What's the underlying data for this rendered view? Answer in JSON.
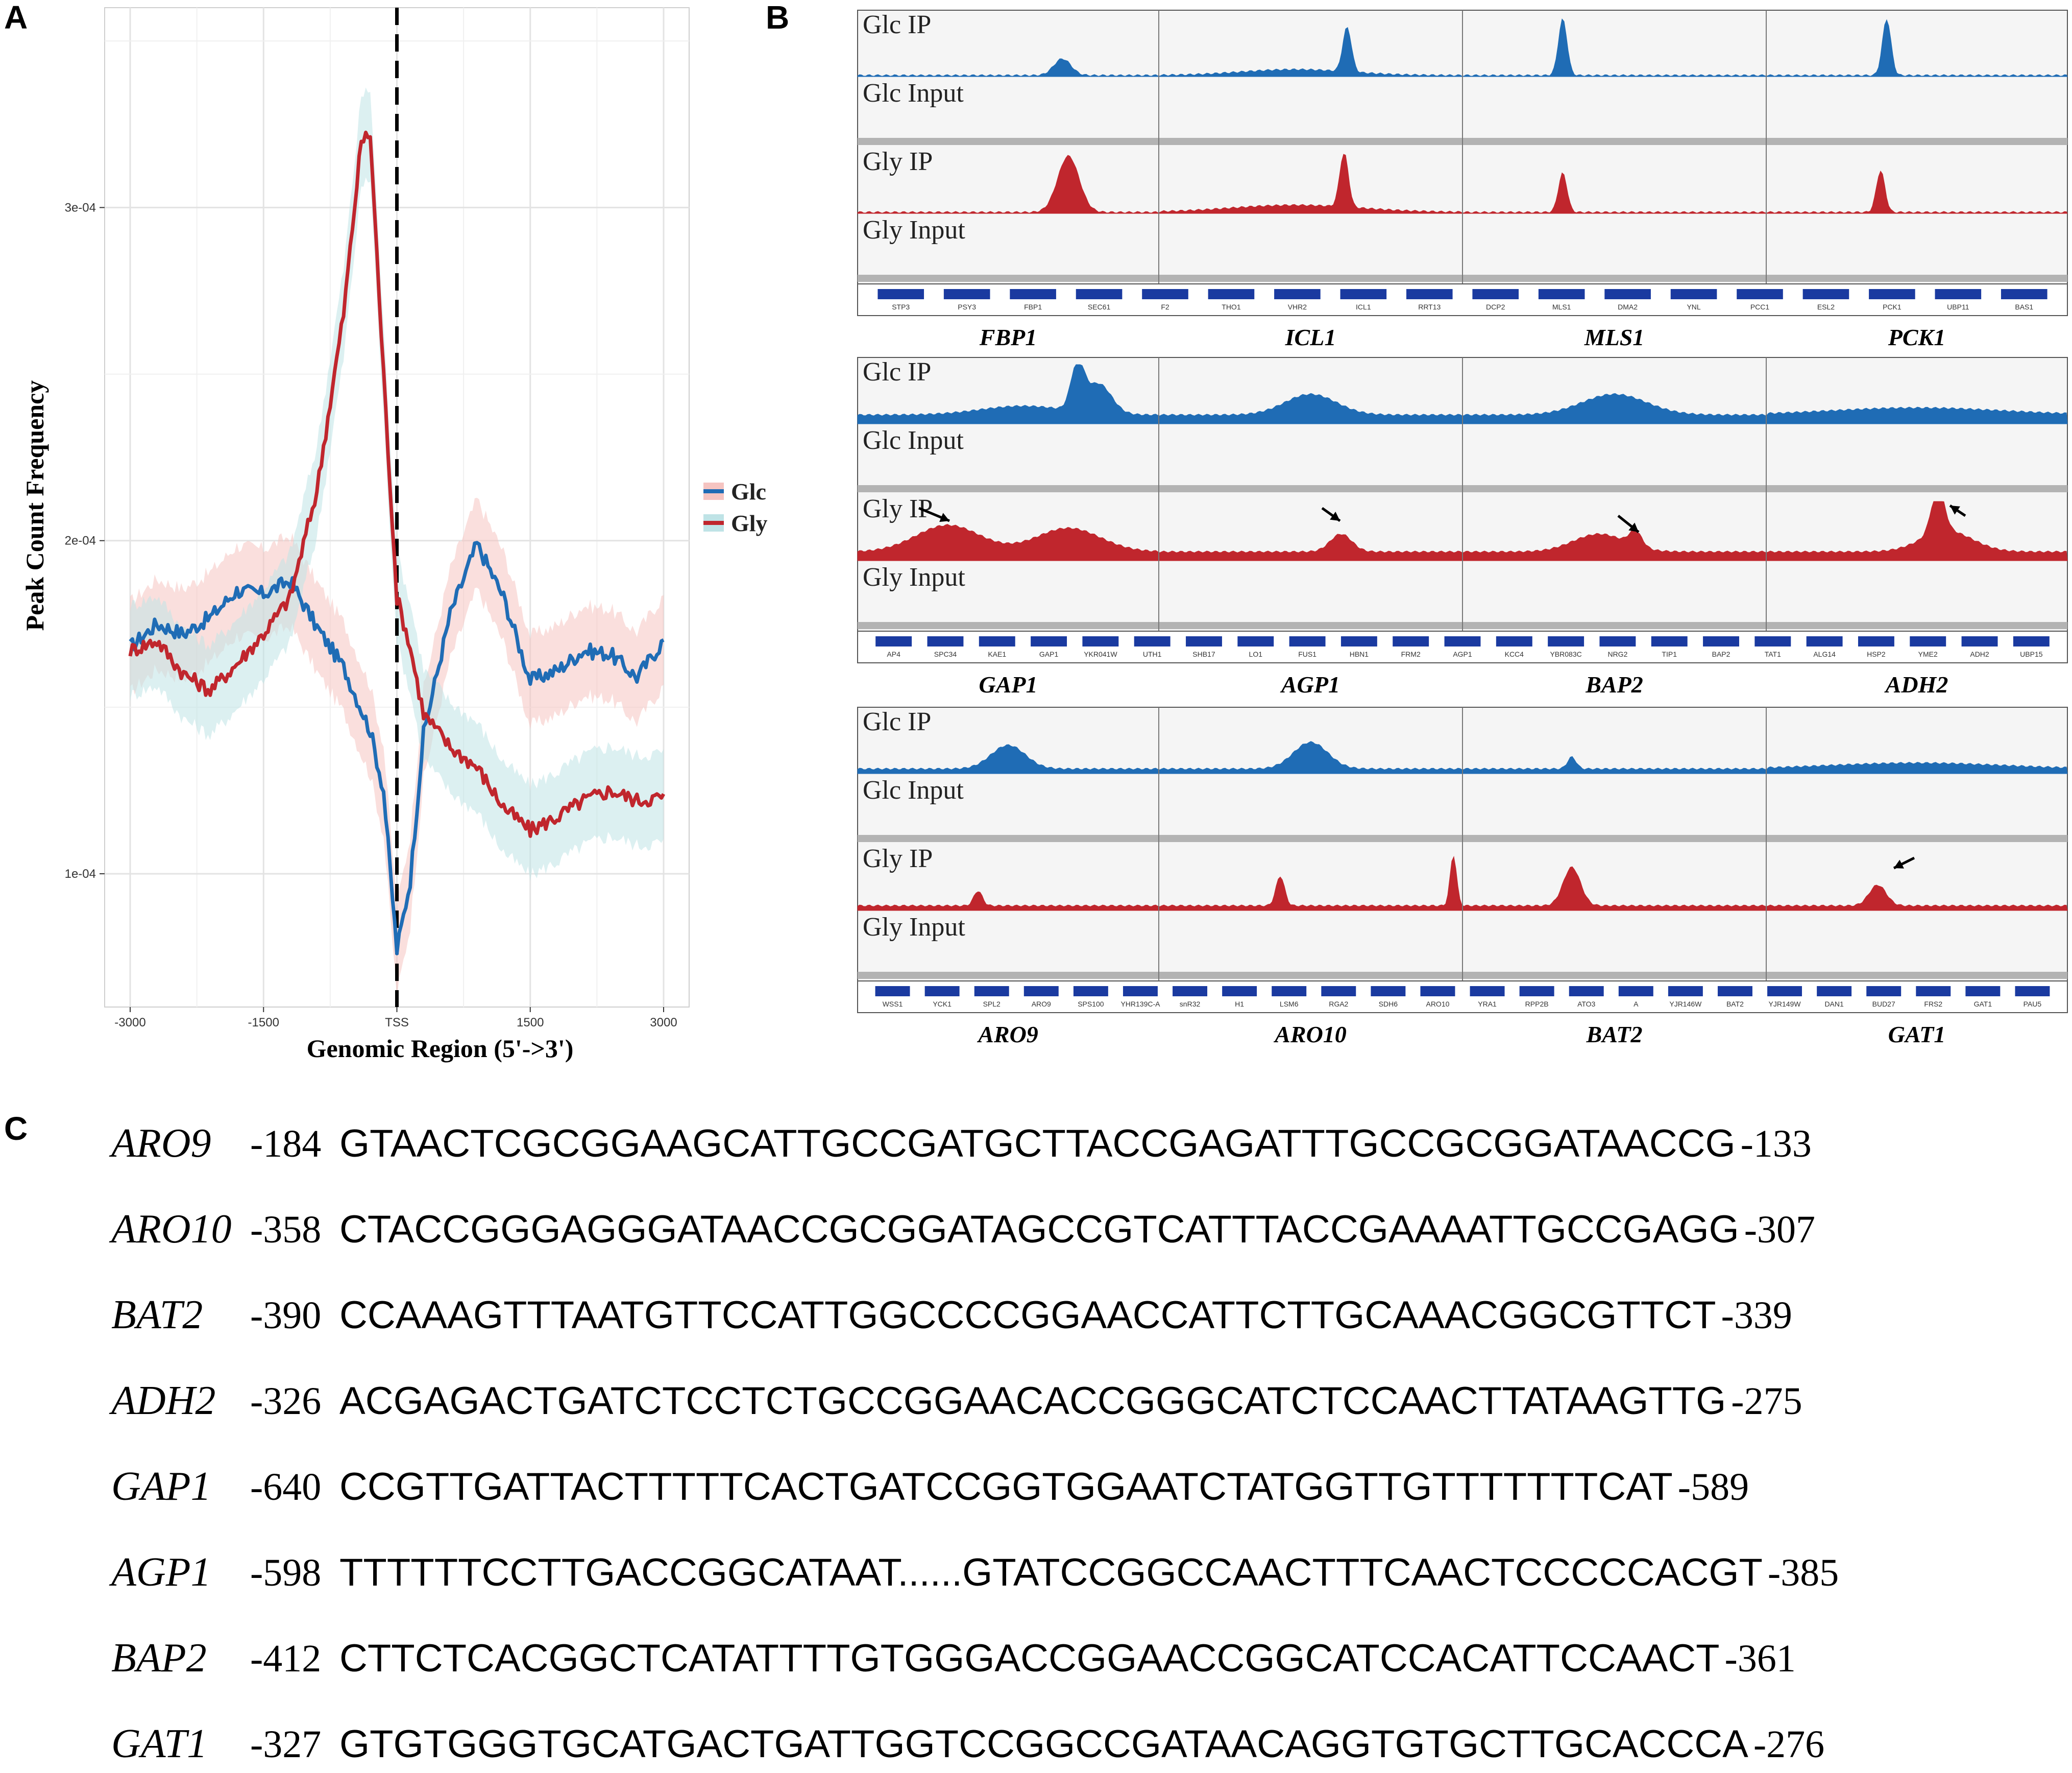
{
  "panels": {
    "a": "A",
    "b": "B",
    "c": "C"
  },
  "chart_data": {
    "type": "line",
    "xlabel": "Genomic Region (5'->3')",
    "ylabel": "Peak Count Frequency",
    "xlim": [
      -3000,
      3000
    ],
    "ylim": [
      6e-05,
      0.00036
    ],
    "x_ticks": [
      -3000,
      -1500,
      0,
      1500,
      3000
    ],
    "x_tick_labels": [
      "-3000",
      "-1500",
      "TSS",
      "1500",
      "3000"
    ],
    "y_ticks": [
      0.0001,
      0.0002,
      0.0003
    ],
    "y_tick_labels": [
      "1e-04",
      "2e-04",
      "3e-04"
    ],
    "grid": true,
    "vline": {
      "x": 0,
      "style": "dashed"
    },
    "legend_position": "right",
    "series": [
      {
        "name": "Glc",
        "color": "#1f6cb5",
        "band": "#f5c4c1",
        "x": [
          -3000,
          -2700,
          -2400,
          -2100,
          -1800,
          -1500,
          -1200,
          -900,
          -600,
          -300,
          -150,
          0,
          150,
          300,
          600,
          900,
          1200,
          1500,
          1800,
          2100,
          2400,
          2700,
          3000
        ],
        "y": [
          0.000168,
          0.000175,
          0.000172,
          0.000177,
          0.000185,
          0.000184,
          0.000188,
          0.000174,
          0.000162,
          0.000143,
          0.000125,
          7.7e-05,
          9.8e-05,
          0.000142,
          0.000178,
          0.000199,
          0.000183,
          0.000158,
          0.000161,
          0.000167,
          0.000166,
          0.000159,
          0.00017
        ]
      },
      {
        "name": "Gly",
        "color": "#c0262d",
        "band": "#bfe3e6",
        "x": [
          -3000,
          -2700,
          -2400,
          -2100,
          -1800,
          -1500,
          -1200,
          -900,
          -600,
          -400,
          -300,
          -150,
          0,
          150,
          300,
          600,
          900,
          1200,
          1500,
          1800,
          2100,
          2400,
          2700,
          3000
        ],
        "y": [
          0.000167,
          0.00017,
          0.00016,
          0.000155,
          0.000163,
          0.000172,
          0.000183,
          0.000215,
          0.000268,
          0.00032,
          0.000322,
          0.00025,
          0.000183,
          0.000168,
          0.000148,
          0.000138,
          0.000132,
          0.00012,
          0.000113,
          0.000117,
          0.000122,
          0.000125,
          0.000122,
          0.000123
        ]
      }
    ]
  },
  "browser": {
    "track_labels": [
      "Glc IP",
      "Glc Input",
      "Gly IP",
      "Gly Input"
    ],
    "blocks": [
      {
        "genes": [
          "FBP1",
          "ICL1",
          "MLS1",
          "PCK1"
        ],
        "annotation": [
          "STP3",
          "PSY3",
          "FBP1",
          "SEC61",
          "F2",
          "THO1",
          "VHR2",
          "ICL1",
          "RRT13",
          "DCP2",
          "MLS1",
          "DMA2",
          "YNL",
          "PCC1",
          "ESL2",
          "PCK1",
          "UBP11",
          "BAS1"
        ]
      },
      {
        "genes": [
          "GAP1",
          "AGP1",
          "BAP2",
          "ADH2"
        ],
        "annotation": [
          "AP4",
          "SPC34",
          "KAE1",
          "GAP1",
          "YKR041W",
          "UTH1",
          "SHB17",
          "LO1",
          "FUS1",
          "HBN1",
          "FRM2",
          "AGP1",
          "KCC4",
          "YBR083C",
          "NRG2",
          "TIP1",
          "BAP2",
          "TAT1",
          "ALG14",
          "HSP2",
          "YME2",
          "ADH2",
          "UBP15"
        ]
      },
      {
        "genes": [
          "ARO9",
          "ARO10",
          "BAT2",
          "GAT1"
        ],
        "annotation": [
          "WSS1",
          "YCK1",
          "SPL2",
          "ARO9",
          "SPS100",
          "YHR139C-A",
          "snR32",
          "H1",
          "LSM6",
          "RGA2",
          "SDH6",
          "ARO10",
          "YRA1",
          "RPP2B",
          "ATO3",
          "A",
          "YJR146W",
          "BAT2",
          "YJR149W",
          "DAN1",
          "BUD27",
          "FRS2",
          "GAT1",
          "PAU5"
        ]
      }
    ]
  },
  "sequences": [
    {
      "gene": "ARO9",
      "start": "-184",
      "end": "-133",
      "seq": "GTAACTCGCGGAAGCATTGCCGATGCTTACCGAGATTTGCCGCGGATAACCG"
    },
    {
      "gene": "ARO10",
      "start": "-358",
      "end": "-307",
      "seq": "CTACCGGGAGGGATAACCGCGGATAGCCGTCATTTACCGAAAATTGCCGAGG"
    },
    {
      "gene": "BAT2",
      "start": "-390",
      "end": "-339",
      "seq": "CCAAAGTTTAATGTTCCATTGGCCCCGGAACCATTCTTGCAAACGGCGTTCT"
    },
    {
      "gene": "ADH2",
      "start": "-326",
      "end": "-275",
      "seq": "ACGAGACTGATCTCCTCTGCCGGAACACCGGGCATCTCCAACTTATAAGTTG"
    },
    {
      "gene": "GAP1",
      "start": "-640",
      "end": "-589",
      "seq": "CCGTTGATTACTTTTTCACTGATCCGGTGGAATCTATGGTTGTTTTTTTCAT"
    },
    {
      "gene": "AGP1",
      "start": "-598",
      "end": "-385",
      "seq": "TTTTTTCCTTGACCGGCATAAT......GTATCCGGCCAACTTTCAACTCCCCCACGT"
    },
    {
      "gene": "BAP2",
      "start": "-412",
      "end": "-361",
      "seq": "CTTCTCACGGCTCATATTTTGTGGGACCGGAACCGGCATCCACATTCCAACT"
    },
    {
      "gene": "GAT1",
      "start": "-327",
      "end": "-276",
      "seq": "GTGTGGGTGCATGACTGATTGGTCCGGCCGATAACAGGTGTGCTTGCACCCA"
    }
  ]
}
